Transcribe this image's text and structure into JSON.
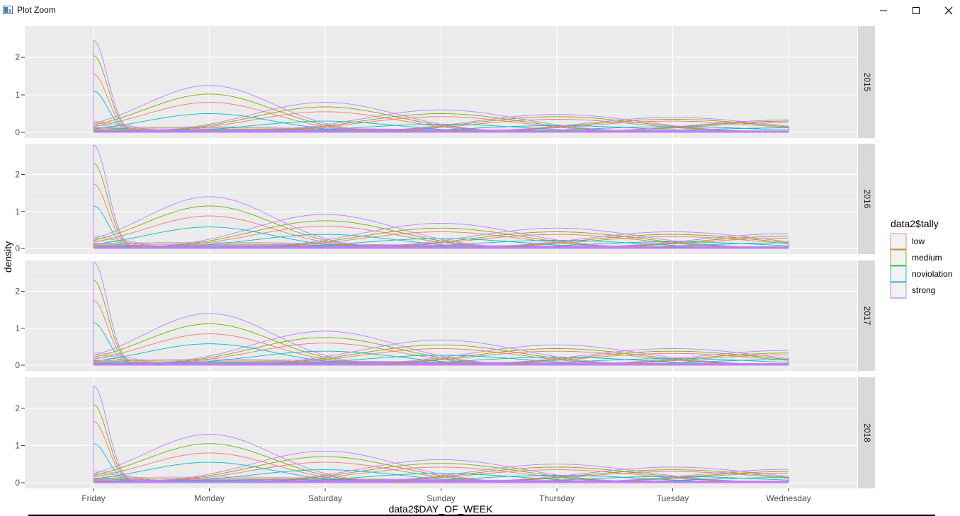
{
  "window": {
    "title": "Plot Zoom",
    "icon": "plot-app-icon",
    "controls": [
      "minimize-icon",
      "maximize-icon",
      "close-icon"
    ]
  },
  "chart_data": {
    "type": "line",
    "kind": "faceted density plot",
    "xlabel": "data2$DAY_OF_WEEK",
    "ylabel": "density",
    "x_categories": [
      "Friday",
      "Monday",
      "Saturday",
      "Sunday",
      "Thursday",
      "Tuesday",
      "Wednesday"
    ],
    "yticks": [
      0,
      1,
      2
    ],
    "ylim": [
      0,
      2.7
    ],
    "grid": true,
    "panel_background": "#EBEBEB",
    "strip_background": "#D9D9D9",
    "legend": {
      "title": "data2$tally",
      "placement": "right",
      "entries": [
        {
          "label": "low",
          "color": "#F8766D"
        },
        {
          "label": "medium",
          "color": "#7CAE00"
        },
        {
          "label": "noviolation",
          "color": "#00BFC4"
        },
        {
          "label": "strong",
          "color": "#C77CFF"
        }
      ]
    },
    "facets": [
      {
        "label": "2015",
        "series": [
          {
            "name": "low",
            "peaks": [
              1.55,
              0.8,
              0.55,
              0.42,
              0.35,
              0.3,
              0.26
            ]
          },
          {
            "name": "medium",
            "peaks": [
              2.05,
              1.02,
              0.68,
              0.5,
              0.42,
              0.35,
              0.3
            ]
          },
          {
            "name": "noviolation",
            "peaks": [
              1.1,
              0.5,
              0.3,
              0.22,
              0.18,
              0.15,
              0.12
            ]
          },
          {
            "name": "strong",
            "peaks": [
              2.45,
              1.25,
              0.8,
              0.6,
              0.48,
              0.4,
              0.33
            ]
          }
        ]
      },
      {
        "label": "2016",
        "series": [
          {
            "name": "low",
            "peaks": [
              1.75,
              0.88,
              0.6,
              0.45,
              0.38,
              0.32,
              0.28
            ]
          },
          {
            "name": "medium",
            "peaks": [
              2.3,
              1.15,
              0.75,
              0.55,
              0.45,
              0.38,
              0.33
            ]
          },
          {
            "name": "noviolation",
            "peaks": [
              1.15,
              0.58,
              0.38,
              0.27,
              0.22,
              0.18,
              0.15
            ]
          },
          {
            "name": "strong",
            "peaks": [
              2.8,
              1.4,
              0.92,
              0.68,
              0.55,
              0.45,
              0.4
            ]
          }
        ]
      },
      {
        "label": "2017",
        "series": [
          {
            "name": "low",
            "peaks": [
              1.75,
              0.85,
              0.6,
              0.45,
              0.38,
              0.32,
              0.28
            ]
          },
          {
            "name": "medium",
            "peaks": [
              2.3,
              1.12,
              0.75,
              0.55,
              0.45,
              0.38,
              0.33
            ]
          },
          {
            "name": "noviolation",
            "peaks": [
              1.15,
              0.58,
              0.38,
              0.27,
              0.22,
              0.18,
              0.15
            ]
          },
          {
            "name": "strong",
            "peaks": [
              2.8,
              1.4,
              0.92,
              0.68,
              0.55,
              0.45,
              0.4
            ]
          }
        ]
      },
      {
        "label": "2018",
        "series": [
          {
            "name": "low",
            "peaks": [
              1.65,
              0.8,
              0.55,
              0.42,
              0.35,
              0.3,
              0.26
            ]
          },
          {
            "name": "medium",
            "peaks": [
              2.1,
              1.05,
              0.7,
              0.52,
              0.42,
              0.35,
              0.3
            ]
          },
          {
            "name": "noviolation",
            "peaks": [
              1.05,
              0.55,
              0.35,
              0.25,
              0.2,
              0.17,
              0.14
            ]
          },
          {
            "name": "strong",
            "peaks": [
              2.6,
              1.3,
              0.85,
              0.62,
              0.5,
              0.42,
              0.36
            ]
          }
        ]
      }
    ]
  }
}
